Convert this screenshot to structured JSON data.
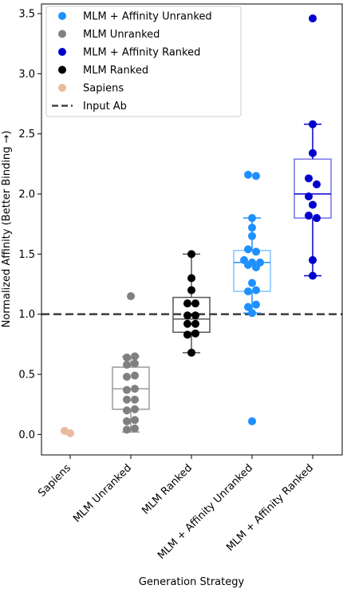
{
  "chart_data": {
    "type": "box+swarm",
    "xlabel": "Generation Strategy",
    "ylabel": "Normalized Affinity (Better Binding →)",
    "ylim": [
      -0.17,
      3.58
    ],
    "yticks": [
      "0.0",
      "0.5",
      "1.0",
      "1.5",
      "2.0",
      "2.5",
      "3.0",
      "3.5"
    ],
    "ytick_values": [
      0,
      0.5,
      1.0,
      1.5,
      2.0,
      2.5,
      3.0,
      3.5
    ],
    "categories": [
      "Sapiens",
      "MLM Unranked",
      "MLM Ranked",
      "MLM + Affinity Unranked",
      "MLM + Affinity Ranked"
    ],
    "reference_line": {
      "label": "Input Ab",
      "value": 1.0,
      "color": "#444444"
    },
    "legend": {
      "placement": "top-left",
      "entries": [
        {
          "label": "MLM + Affinity Unranked",
          "color": "#1e90ff",
          "marker": "dot"
        },
        {
          "label": "MLM Unranked",
          "color": "#808080",
          "marker": "dot"
        },
        {
          "label": "MLM + Affinity Ranked",
          "color": "#0000cd",
          "marker": "dot"
        },
        {
          "label": "MLM Ranked",
          "color": "#000000",
          "marker": "dot"
        },
        {
          "label": "Sapiens",
          "color": "#e9b9a0",
          "marker": "dot"
        },
        {
          "label": "Input Ab",
          "color": "#444444",
          "marker": "dashed-line"
        }
      ]
    },
    "series": [
      {
        "name": "Sapiens",
        "category": "Sapiens",
        "color": "#e9b9a0",
        "points": [
          [
            -0.07,
            0.03
          ],
          [
            0.0,
            0.01
          ]
        ],
        "box": null
      },
      {
        "name": "MLM Unranked",
        "category": "MLM Unranked",
        "color": "#808080",
        "points": [
          [
            0,
            1.15
          ],
          [
            0.05,
            0.65
          ],
          [
            -0.05,
            0.64
          ],
          [
            0.05,
            0.59
          ],
          [
            -0.05,
            0.58
          ],
          [
            0.05,
            0.49
          ],
          [
            -0.05,
            0.48
          ],
          [
            0.05,
            0.38
          ],
          [
            -0.05,
            0.37
          ],
          [
            0.05,
            0.29
          ],
          [
            -0.05,
            0.29
          ],
          [
            0.05,
            0.21
          ],
          [
            -0.05,
            0.2
          ],
          [
            0.05,
            0.12
          ],
          [
            -0.05,
            0.11
          ],
          [
            0.05,
            0.05
          ],
          [
            -0.05,
            0.04
          ]
        ],
        "box": {
          "q1": 0.21,
          "median": 0.38,
          "q3": 0.56,
          "whisker_low": 0.02,
          "whisker_high": 0.65
        }
      },
      {
        "name": "MLM Ranked",
        "category": "MLM Ranked",
        "color": "#000000",
        "points": [
          [
            0,
            1.5
          ],
          [
            0,
            1.3
          ],
          [
            0,
            1.2
          ],
          [
            0.05,
            1.09
          ],
          [
            -0.05,
            1.09
          ],
          [
            0.05,
            0.99
          ],
          [
            -0.05,
            0.99
          ],
          [
            0.05,
            0.92
          ],
          [
            -0.05,
            0.92
          ],
          [
            0.05,
            0.84
          ],
          [
            -0.05,
            0.83
          ],
          [
            0,
            0.68
          ]
        ],
        "box": {
          "q1": 0.85,
          "median": 0.96,
          "q3": 1.14,
          "whisker_low": 0.68,
          "whisker_high": 1.5
        }
      },
      {
        "name": "MLM + Affinity Unranked",
        "category": "MLM + Affinity Unranked",
        "color": "#1e90ff",
        "points": [
          [
            -0.05,
            2.16
          ],
          [
            0.05,
            2.15
          ],
          [
            0,
            1.8
          ],
          [
            0,
            1.72
          ],
          [
            0,
            1.65
          ],
          [
            -0.05,
            1.54
          ],
          [
            0.05,
            1.52
          ],
          [
            -0.1,
            1.45
          ],
          [
            0,
            1.43
          ],
          [
            0.1,
            1.43
          ],
          [
            -0.05,
            1.41
          ],
          [
            0.05,
            1.39
          ],
          [
            0,
            1.26
          ],
          [
            0.05,
            1.2
          ],
          [
            -0.05,
            1.19
          ],
          [
            0.05,
            1.08
          ],
          [
            -0.05,
            1.06
          ],
          [
            0,
            1.01
          ],
          [
            0,
            0.11
          ]
        ],
        "box": {
          "q1": 1.19,
          "median": 1.43,
          "q3": 1.53,
          "whisker_low": 1.01,
          "whisker_high": 1.8
        }
      },
      {
        "name": "MLM + Affinity Ranked",
        "category": "MLM + Affinity Ranked",
        "color": "#0000cd",
        "points": [
          [
            0,
            3.46
          ],
          [
            0,
            2.58
          ],
          [
            0,
            2.34
          ],
          [
            -0.05,
            2.13
          ],
          [
            0.05,
            2.08
          ],
          [
            -0.05,
            1.98
          ],
          [
            0,
            1.91
          ],
          [
            -0.05,
            1.82
          ],
          [
            0.05,
            1.8
          ],
          [
            0,
            1.45
          ],
          [
            0,
            1.32
          ]
        ],
        "box": {
          "q1": 1.8,
          "median": 2.0,
          "q3": 2.29,
          "whisker_low": 1.32,
          "whisker_high": 2.58
        }
      }
    ]
  }
}
